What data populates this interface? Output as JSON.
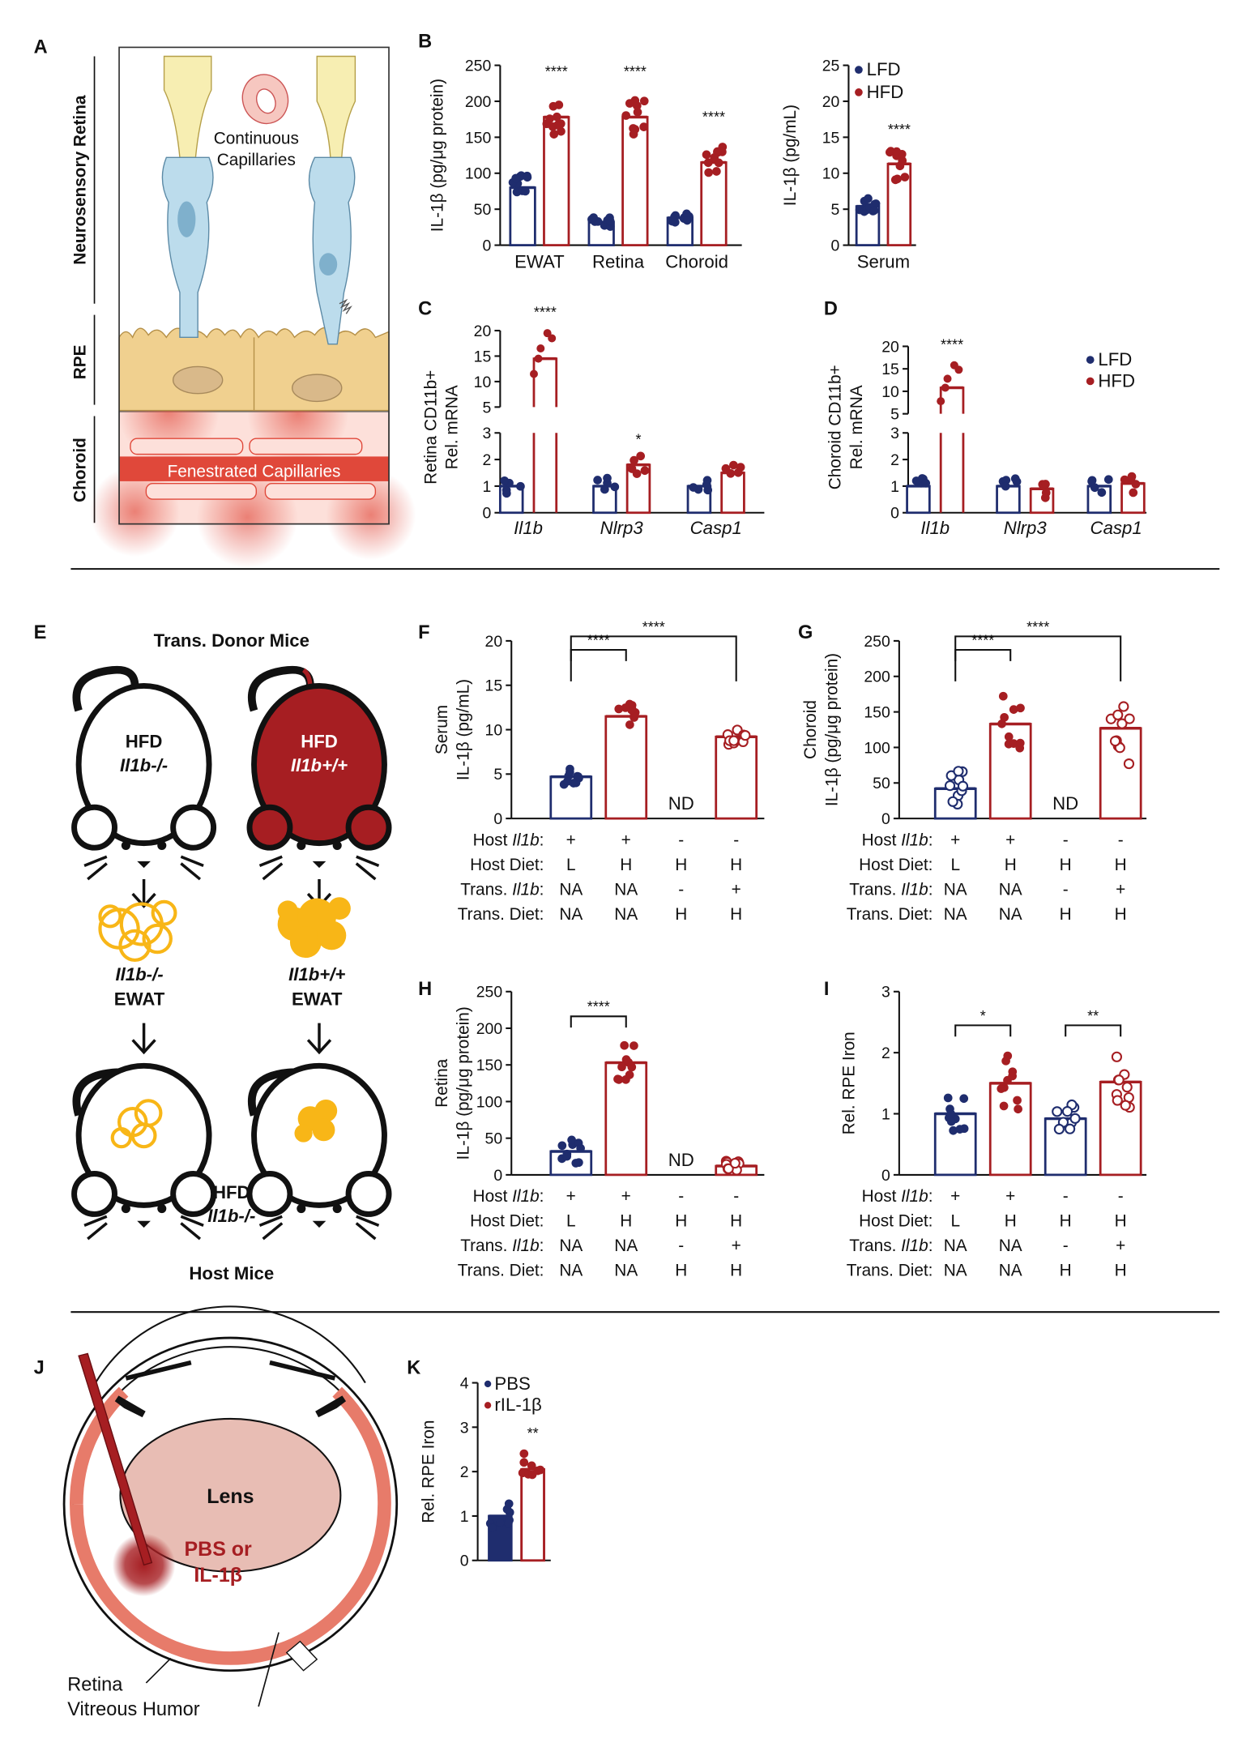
{
  "colors": {
    "lfd": "#1f2d6e",
    "hfd": "#a61e22",
    "fat": "#f8b617",
    "rpe": "#f0d08f",
    "photo": "#f7eeb2",
    "cone": "#bcdcec",
    "vessel": "#e0483a",
    "lens": "#e8bdb4"
  },
  "panels": {
    "A": "A",
    "B": "B",
    "C": "C",
    "D": "D",
    "E": "E",
    "F": "F",
    "G": "G",
    "H": "H",
    "I": "I",
    "J": "J",
    "K": "K"
  },
  "schematic_a": {
    "layer1": "Neurosensory Retina",
    "layer2": "RPE",
    "layer3": "Choroid",
    "cap1": "Continuous",
    "cap2": "Capillaries",
    "fen": "Fenestrated Capillaries"
  },
  "schematic_e": {
    "donor_title": "Trans. Donor Mice",
    "diet": "HFD",
    "ko": "Il1b-/-",
    "wt": "Il1b+/+",
    "ewat": "EWAT",
    "host_label1": "HFD",
    "host_label2": "Il1b-/-",
    "host_title": "Host Mice"
  },
  "schematic_j": {
    "lens": "Lens",
    "inj1": "PBS or",
    "inj2": "IL-1β",
    "retina": "Retina",
    "vitreous": "Vitreous Humor"
  },
  "legend": {
    "lfd": "LFD",
    "hfd": "HFD",
    "pbs": "PBS",
    "ril": "rIL-1β"
  },
  "table_rows": {
    "r1a": "Host ",
    "r1b": "Il1b",
    "r1c": ":",
    "r2": "Host Diet:",
    "r3a": "Trans. ",
    "r3b": "Il1b",
    "r3c": ":",
    "r4": "Trans. Diet:"
  },
  "table_values": [
    [
      "+",
      "+",
      "-",
      "-"
    ],
    [
      "L",
      "H",
      "H",
      "H"
    ],
    [
      "NA",
      "NA",
      "-",
      "+"
    ],
    [
      "NA",
      "NA",
      "H",
      "H"
    ]
  ],
  "nd": "ND",
  "chart_data": [
    {
      "panel": "B",
      "type": "bar",
      "ylabel": "IL-1β (pg/μg protein)",
      "ylim": [
        0,
        250
      ],
      "yticks": [
        0,
        50,
        100,
        150,
        200,
        250
      ],
      "categories": [
        "EWAT",
        "Retina",
        "Choroid"
      ],
      "series": [
        {
          "name": "LFD",
          "values": [
            80,
            32,
            38
          ]
        },
        {
          "name": "HFD",
          "values": [
            178,
            178,
            115
          ]
        }
      ],
      "significance": [
        "****",
        "****",
        "****"
      ]
    },
    {
      "panel": "B",
      "type": "bar",
      "ylabel": "IL-1β (pg/mL)",
      "ylim": [
        0,
        25
      ],
      "yticks": [
        0,
        5,
        10,
        15,
        20,
        25
      ],
      "categories": [
        "Serum"
      ],
      "series": [
        {
          "name": "LFD",
          "values": [
            5.4
          ]
        },
        {
          "name": "HFD",
          "values": [
            11.3
          ]
        }
      ],
      "significance": [
        "****"
      ]
    },
    {
      "panel": "C",
      "type": "bar",
      "ylabel": "Retina CD11b+ Rel. mRNA",
      "yticks": [
        0,
        1,
        2,
        3,
        5,
        10,
        15,
        20
      ],
      "broken_axis": true,
      "categories": [
        "Il1b",
        "Nlrp3",
        "Casp1"
      ],
      "series": [
        {
          "name": "LFD",
          "values": [
            1.0,
            1.0,
            1.0
          ]
        },
        {
          "name": "HFD",
          "values": [
            14.5,
            1.8,
            1.5
          ]
        }
      ],
      "significance": [
        "****",
        "*",
        ""
      ]
    },
    {
      "panel": "D",
      "type": "bar",
      "ylabel": "Choroid CD11b+ Rel. mRNA",
      "yticks": [
        0,
        1,
        2,
        3,
        5,
        10,
        15,
        20
      ],
      "broken_axis": true,
      "categories": [
        "Il1b",
        "Nlrp3",
        "Casp1"
      ],
      "series": [
        {
          "name": "LFD",
          "values": [
            1.0,
            1.0,
            1.0
          ]
        },
        {
          "name": "HFD",
          "values": [
            10.8,
            0.9,
            1.1
          ]
        }
      ],
      "significance": [
        "****",
        "",
        ""
      ]
    },
    {
      "panel": "F",
      "type": "bar",
      "ylabel": "Serum IL-1β (pg/mL)",
      "ylim": [
        0,
        20
      ],
      "yticks": [
        0,
        5,
        10,
        15,
        20
      ],
      "values": [
        4.7,
        11.5,
        null,
        9.2
      ],
      "significance": [
        "****",
        "****"
      ]
    },
    {
      "panel": "G",
      "type": "bar",
      "ylabel": "Choroid IL-1β (pg/μg protein)",
      "ylim": [
        0,
        250
      ],
      "yticks": [
        0,
        50,
        100,
        150,
        200,
        250
      ],
      "values": [
        42,
        133,
        null,
        127
      ],
      "significance": [
        "****",
        "****"
      ]
    },
    {
      "panel": "H",
      "type": "bar",
      "ylabel": "Retina IL-1β (pg/μg protein)",
      "ylim": [
        0,
        250
      ],
      "yticks": [
        0,
        50,
        100,
        150,
        200,
        250
      ],
      "values": [
        32,
        153,
        null,
        12
      ],
      "significance": [
        "****"
      ]
    },
    {
      "panel": "I",
      "type": "bar",
      "ylabel": "Rel. RPE Iron",
      "ylim": [
        0,
        3
      ],
      "yticks": [
        0,
        1,
        2,
        3
      ],
      "values": [
        1.0,
        1.5,
        0.92,
        1.52
      ],
      "significance": [
        "*",
        "**"
      ]
    },
    {
      "panel": "K",
      "type": "bar",
      "ylabel": "Rel. RPE Iron",
      "ylim": [
        0,
        4
      ],
      "yticks": [
        0,
        1,
        2,
        3,
        4
      ],
      "categories": [
        "PBS",
        "rIL-1β"
      ],
      "values": [
        1.0,
        2.05
      ],
      "significance": [
        "**"
      ]
    }
  ]
}
